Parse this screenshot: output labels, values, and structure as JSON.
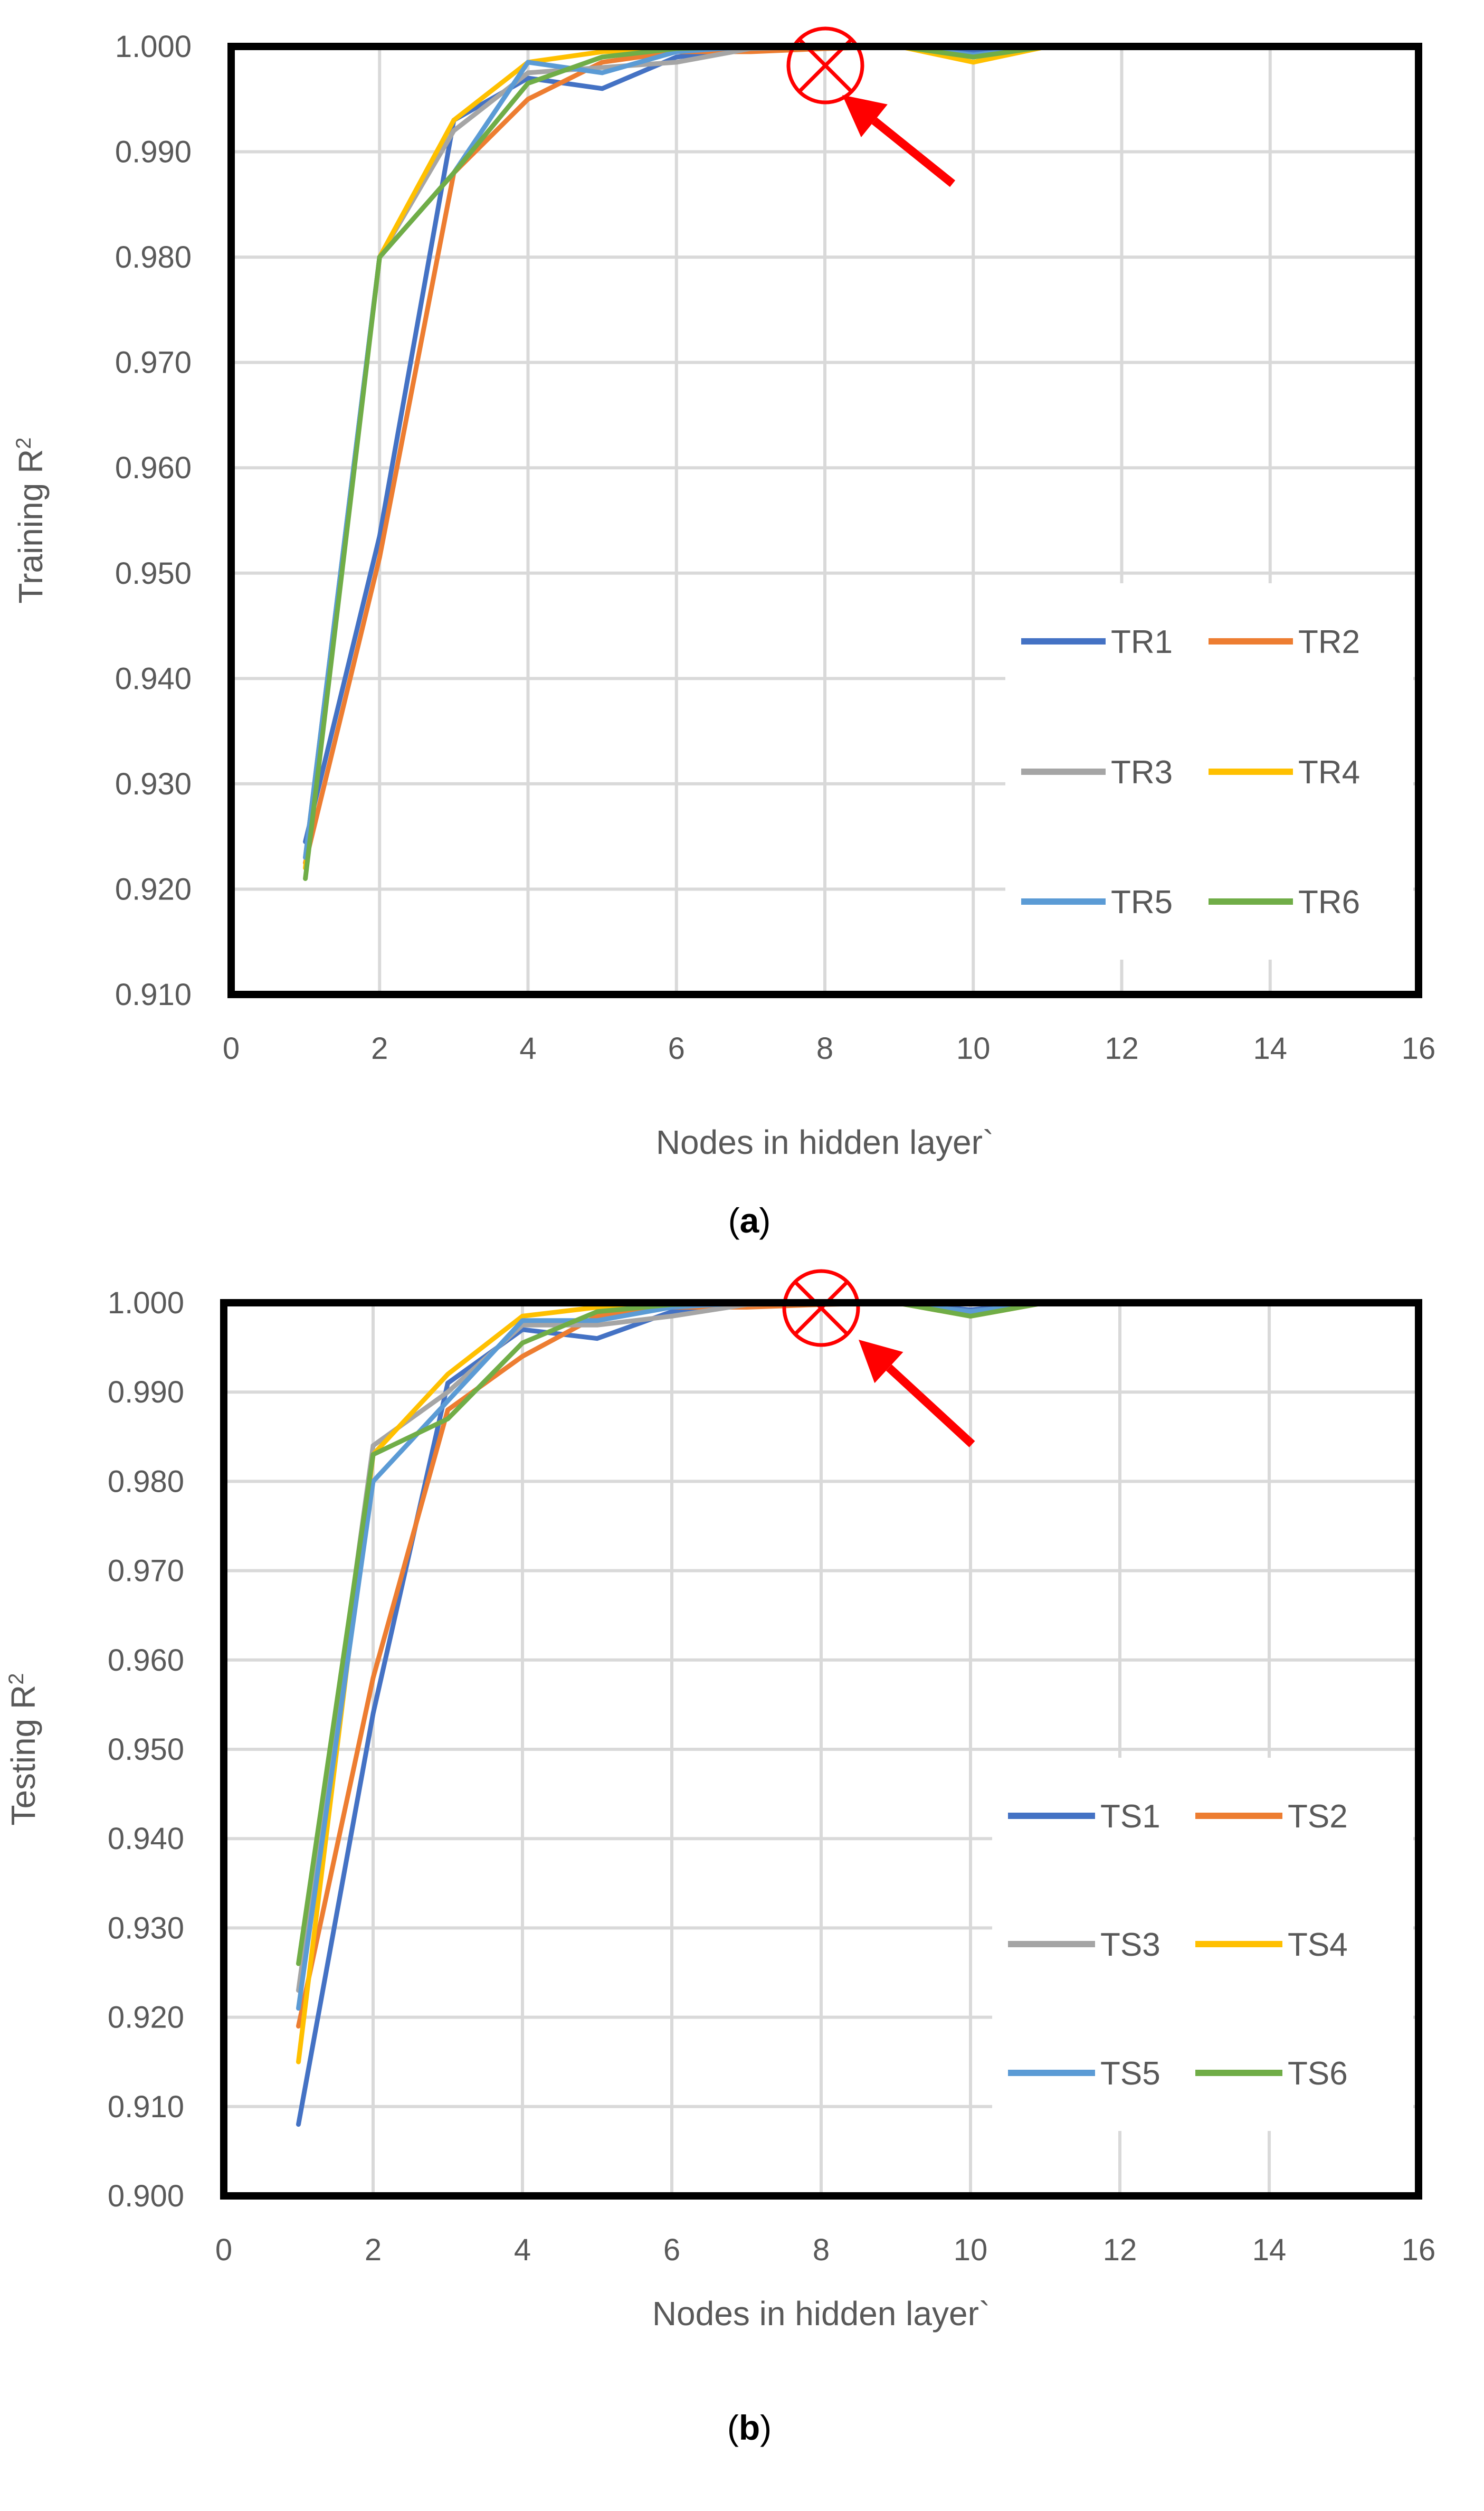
{
  "colors": {
    "series": [
      "#4472C4",
      "#ED7D31",
      "#A5A5A5",
      "#FFC000",
      "#5B9BD5",
      "#70AD47"
    ],
    "grid": "#D9D9D9",
    "frame": "#000000",
    "marker": "#FF0000"
  },
  "charts": [
    {
      "caption_open": "(",
      "caption_letter": "a",
      "caption_close": ")",
      "marker_icon": "circled-x-icon",
      "arrow_icon": "arrow-icon"
    },
    {
      "caption_open": "(",
      "caption_letter": "b",
      "caption_close": ")",
      "marker_icon": "circled-x-icon",
      "arrow_icon": "arrow-icon"
    }
  ],
  "chart_data": [
    {
      "type": "line",
      "xlabel": "Nodes in hidden layer`",
      "ylabel_main": "Training R",
      "ylabel_sup": "2",
      "xlim": [
        0,
        16
      ],
      "ylim": [
        0.91,
        1.0
      ],
      "xticks": [
        0,
        2,
        4,
        6,
        8,
        10,
        12,
        14,
        16
      ],
      "yticks": [
        0.91,
        0.92,
        0.93,
        0.94,
        0.95,
        0.96,
        0.97,
        0.98,
        0.99,
        1.0
      ],
      "ytick_labels": [
        "0.910",
        "0.920",
        "0.930",
        "0.940",
        "0.950",
        "0.960",
        "0.970",
        "0.980",
        "0.990",
        "1.000"
      ],
      "grid": true,
      "legend_position": "lower-right",
      "annotation": {
        "type": "circled-x",
        "x": 8,
        "y": 0.998
      },
      "x": [
        1,
        2,
        3,
        4,
        5,
        6,
        7,
        8,
        9,
        10,
        11,
        12,
        13,
        14
      ],
      "series": [
        {
          "name": "TR1",
          "values": [
            0.9245,
            0.9535,
            0.993,
            0.997,
            0.996,
            0.999,
            0.9998,
            1.0,
            1.0,
            0.9995,
            1.0,
            1.0,
            1.0,
            1.0
          ]
        },
        {
          "name": "TR2",
          "values": [
            0.9225,
            0.9515,
            0.988,
            0.995,
            0.9985,
            0.9995,
            0.9995,
            0.9998,
            1.0,
            1.0,
            1.0,
            1.0,
            1.0,
            1.0
          ]
        },
        {
          "name": "TR3",
          "values": [
            0.923,
            0.98,
            0.992,
            0.9975,
            0.998,
            0.9985,
            0.9998,
            1.0,
            1.0,
            0.999,
            1.0,
            1.0,
            1.0,
            1.0
          ]
        },
        {
          "name": "TR4",
          "values": [
            0.922,
            0.98,
            0.993,
            0.9985,
            0.9995,
            0.9998,
            1.0,
            1.0,
            1.0,
            0.9985,
            1.0,
            1.0,
            1.0,
            1.0
          ]
        },
        {
          "name": "TR5",
          "values": [
            0.923,
            0.98,
            0.988,
            0.9985,
            0.9975,
            0.9995,
            1.0,
            1.0,
            1.0,
            0.9992,
            1.0,
            1.0,
            1.0,
            1.0
          ]
        },
        {
          "name": "TR6",
          "values": [
            0.921,
            0.98,
            0.988,
            0.9965,
            0.999,
            0.9998,
            1.0,
            1.0,
            1.0,
            0.999,
            1.0,
            1.0,
            1.0,
            1.0
          ]
        }
      ]
    },
    {
      "type": "line",
      "xlabel": "Nodes in hidden layer`",
      "ylabel_main": "Testing R",
      "ylabel_sup": "2",
      "xlim": [
        0,
        16
      ],
      "ylim": [
        0.9,
        1.0
      ],
      "xticks": [
        0,
        2,
        4,
        6,
        8,
        10,
        12,
        14,
        16
      ],
      "yticks": [
        0.9,
        0.91,
        0.92,
        0.93,
        0.94,
        0.95,
        0.96,
        0.97,
        0.98,
        0.99,
        1.0
      ],
      "ytick_labels": [
        "0.900",
        "0.910",
        "0.920",
        "0.930",
        "0.940",
        "0.950",
        "0.960",
        "0.970",
        "0.980",
        "0.990",
        "1.000"
      ],
      "grid": true,
      "legend_position": "lower-right",
      "annotation": {
        "type": "circled-x",
        "x": 8,
        "y": 0.999
      },
      "x": [
        1,
        2,
        3,
        4,
        5,
        6,
        7,
        8,
        9,
        10,
        11,
        12,
        13,
        14
      ],
      "series": [
        {
          "name": "TS1",
          "values": [
            0.908,
            0.954,
            0.991,
            0.997,
            0.996,
            0.999,
            0.9998,
            1.0,
            1.0,
            0.9992,
            1.0,
            1.0,
            1.0,
            1.0
          ]
        },
        {
          "name": "TS2",
          "values": [
            0.919,
            0.958,
            0.988,
            0.994,
            0.9985,
            0.9995,
            0.9995,
            0.9998,
            1.0,
            0.999,
            1.0,
            1.0,
            1.0,
            1.0
          ]
        },
        {
          "name": "TS3",
          "values": [
            0.923,
            0.984,
            0.99,
            0.9975,
            0.9975,
            0.9985,
            0.9998,
            1.0,
            1.0,
            0.999,
            1.0,
            1.0,
            1.0,
            1.0
          ]
        },
        {
          "name": "TS4",
          "values": [
            0.915,
            0.983,
            0.992,
            0.9985,
            0.9995,
            0.9998,
            1.0,
            1.0,
            1.0,
            0.9985,
            1.0,
            1.0,
            1.0,
            1.0
          ]
        },
        {
          "name": "TS5",
          "values": [
            0.921,
            0.98,
            0.989,
            0.998,
            0.998,
            0.9995,
            1.0,
            1.0,
            1.0,
            0.999,
            1.0,
            1.0,
            1.0,
            1.0
          ]
        },
        {
          "name": "TS6",
          "values": [
            0.926,
            0.983,
            0.987,
            0.9955,
            0.999,
            0.9998,
            1.0,
            1.0,
            1.0,
            0.9985,
            1.0,
            1.0,
            1.0,
            1.0
          ]
        }
      ]
    }
  ]
}
